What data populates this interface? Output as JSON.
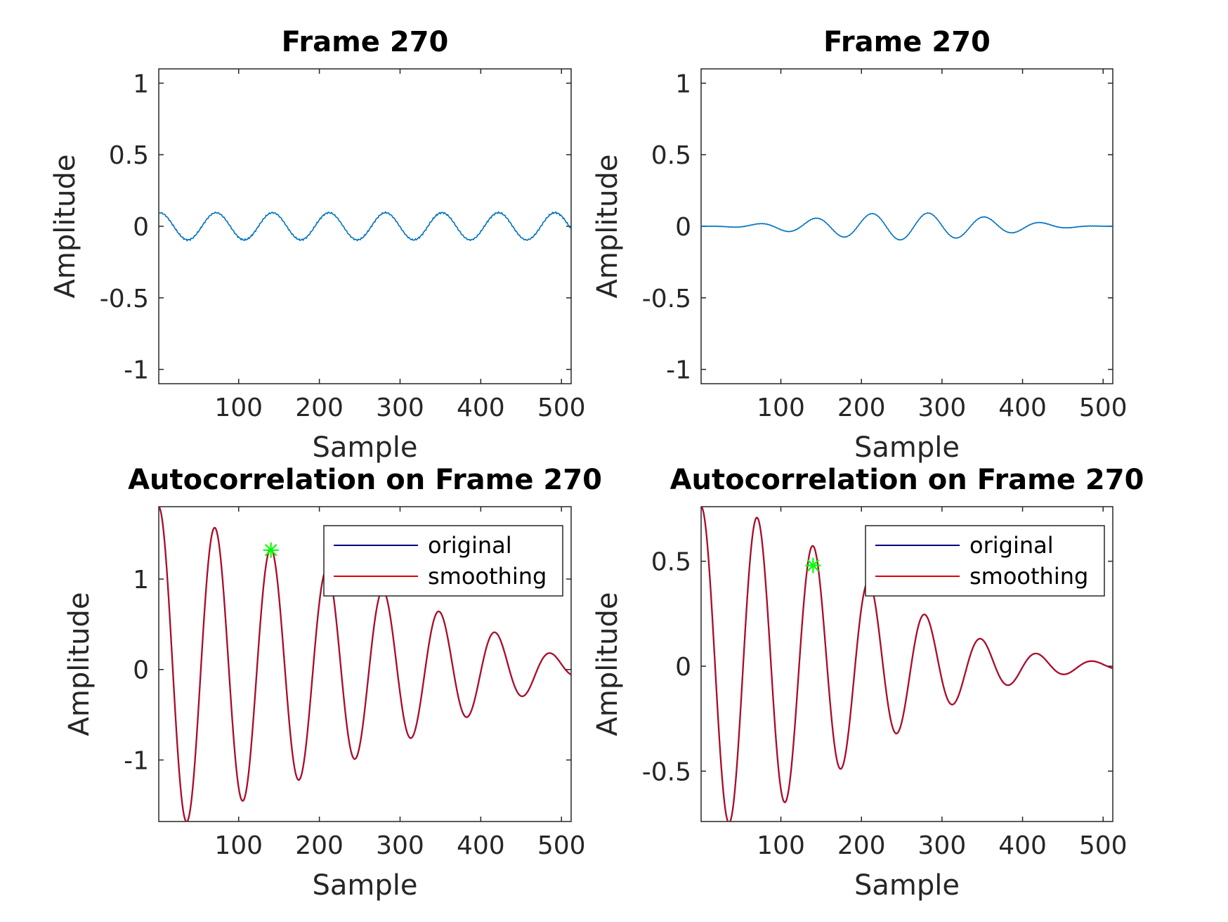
{
  "chart_data": [
    {
      "type": "line",
      "title": "Frame 270",
      "xlabel": "Sample",
      "ylabel": "Amplitude",
      "xlim": [
        1,
        512
      ],
      "ylim": [
        -1.1,
        1.1
      ],
      "xticks": [
        100,
        200,
        300,
        400,
        500
      ],
      "yticks": [
        -1,
        -0.5,
        0,
        0.5,
        1
      ],
      "ytick_labels": [
        "-1",
        "-0.5",
        "0",
        "0.5",
        "1"
      ],
      "signal": {
        "kind": "sine",
        "period": 70,
        "peak_x": 72,
        "amplitude": 0.095,
        "offset": 0,
        "envelope": "flat",
        "start_x": 1,
        "start_y": 0.11
      },
      "series": [
        {
          "color": "#0072BD"
        }
      ],
      "legend": null
    },
    {
      "type": "line",
      "title": "Frame 270",
      "xlabel": "Sample",
      "ylabel": "Amplitude",
      "xlim": [
        1,
        512
      ],
      "ylim": [
        -1.1,
        1.1
      ],
      "xticks": [
        100,
        200,
        300,
        400,
        500
      ],
      "yticks": [
        -1,
        -0.5,
        0,
        0.5,
        1
      ],
      "ytick_labels": [
        "-1",
        "-0.5",
        "0",
        "0.5",
        "1"
      ],
      "signal": {
        "kind": "sine-windowed",
        "period": 70,
        "peak_x": 143,
        "amplitude": 0.095,
        "offset": 0,
        "envelope": "hann",
        "center": 250,
        "width": 512
      },
      "series": [
        {
          "color": "#0072BD"
        }
      ],
      "legend": null
    },
    {
      "type": "line",
      "title": "Autocorrelation on Frame 270",
      "xlabel": "Sample",
      "ylabel": "Amplitude",
      "xlim": [
        1,
        512
      ],
      "ylim": [
        -1.68,
        1.8
      ],
      "xticks": [
        100,
        200,
        300,
        400,
        500
      ],
      "yticks": [
        -1,
        0,
        1
      ],
      "ytick_labels": [
        "-1",
        "0",
        "1"
      ],
      "signal": {
        "kind": "decaying-cosine",
        "period": 69.5,
        "peak_x": 1,
        "amplitude": 1.8,
        "decay": "linear",
        "zero_at": 540
      },
      "series": [
        {
          "name": "original",
          "color": "#00007F"
        },
        {
          "name": "smoothing",
          "color": "#E00000"
        }
      ],
      "marker": {
        "x": 140,
        "y": 1.32,
        "symbol": "*",
        "color": "#00FF00"
      },
      "legend": "top-right"
    },
    {
      "type": "line",
      "title": "Autocorrelation on Frame 270",
      "xlabel": "Sample",
      "ylabel": "Amplitude",
      "xlim": [
        1,
        512
      ],
      "ylim": [
        -0.74,
        0.76
      ],
      "xticks": [
        100,
        200,
        300,
        400,
        500
      ],
      "yticks": [
        -0.5,
        0,
        0.5
      ],
      "ytick_labels": [
        "-0.5",
        "0",
        "0.5"
      ],
      "signal": {
        "kind": "decaying-cosine",
        "period": 69.5,
        "peak_x": 1,
        "amplitude": 0.76,
        "decay": "gaussian",
        "sigma": 185
      },
      "series": [
        {
          "name": "original",
          "color": "#00007F"
        },
        {
          "name": "smoothing",
          "color": "#E00000"
        }
      ],
      "marker": {
        "x": 140,
        "y": 0.48,
        "symbol": "*",
        "color": "#00FF00"
      },
      "legend": "top-right"
    }
  ]
}
